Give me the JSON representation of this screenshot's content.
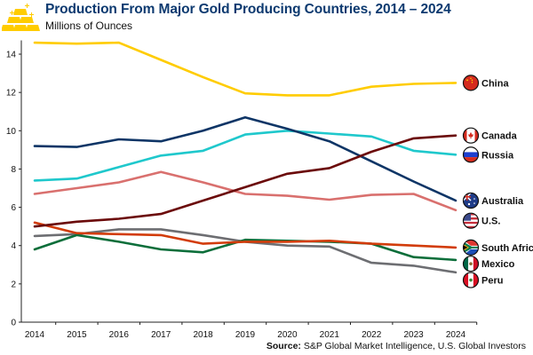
{
  "header": {
    "title": "Production From Major Gold Producing Countries, 2014 – 2024",
    "subtitle": "Millions of Ounces",
    "logo_icon": "gold-bars-icon"
  },
  "source": {
    "label": "Source:",
    "text": " S&P Global Market Intelligence, U.S. Global Investors"
  },
  "chart_data": {
    "type": "line",
    "title": "Production From Major Gold Producing Countries, 2014 – 2024",
    "subtitle": "Millions of Ounces",
    "xlabel": "",
    "ylabel": "Millions of Ounces",
    "x": [
      "2014",
      "2015",
      "2016",
      "2017",
      "2018",
      "2019",
      "2020",
      "2021",
      "2022",
      "2023",
      "2024"
    ],
    "ylim": [
      0,
      15
    ],
    "yticks": [
      0,
      2,
      4,
      6,
      8,
      10,
      12,
      14
    ],
    "grid": false,
    "legend_placement": "right (end-of-line labels with flag icons)",
    "series": [
      {
        "name": "China",
        "color": "#ffcc00",
        "flag": "china-flag-icon",
        "values": [
          14.6,
          14.55,
          14.6,
          13.7,
          12.8,
          11.95,
          11.85,
          11.85,
          12.3,
          12.45,
          12.5
        ]
      },
      {
        "name": "Canada",
        "color": "#6b0a0a",
        "flag": "canada-flag-icon",
        "values": [
          5.0,
          5.25,
          5.4,
          5.65,
          6.35,
          7.05,
          7.75,
          8.05,
          8.9,
          9.6,
          9.75
        ]
      },
      {
        "name": "Russia",
        "color": "#1fc8cc",
        "flag": "russia-flag-icon",
        "values": [
          7.4,
          7.5,
          8.1,
          8.7,
          8.95,
          9.8,
          10.0,
          9.85,
          9.7,
          8.95,
          8.75
        ]
      },
      {
        "name": "Australia",
        "color": "#0e3566",
        "flag": "australia-flag-icon",
        "values": [
          9.2,
          9.15,
          9.55,
          9.45,
          10.0,
          10.7,
          10.1,
          9.45,
          8.4,
          7.35,
          6.35
        ]
      },
      {
        "name": "U.S.",
        "color": "#d9706e",
        "flag": "us-flag-icon",
        "values": [
          6.7,
          7.0,
          7.3,
          7.85,
          7.3,
          6.7,
          6.6,
          6.4,
          6.65,
          6.7,
          5.85
        ]
      },
      {
        "name": "South Africa",
        "color": "#d23c0a",
        "flag": "south-africa-flag-icon",
        "values": [
          5.2,
          4.65,
          4.6,
          4.55,
          4.1,
          4.2,
          4.2,
          4.25,
          4.1,
          4.0,
          3.9
        ]
      },
      {
        "name": "Mexico",
        "color": "#0c6e3a",
        "flag": "mexico-flag-icon",
        "values": [
          3.8,
          4.55,
          4.2,
          3.8,
          3.65,
          4.3,
          4.25,
          4.2,
          4.1,
          3.4,
          3.25
        ]
      },
      {
        "name": "Peru",
        "color": "#6d6e72",
        "flag": "peru-flag-icon",
        "values": [
          4.5,
          4.6,
          4.85,
          4.85,
          4.55,
          4.2,
          4.0,
          3.95,
          3.1,
          2.95,
          2.6
        ]
      }
    ],
    "legend": [
      {
        "name": "China",
        "label_value": 12.5
      },
      {
        "name": "Canada",
        "label_value": 9.75
      },
      {
        "name": "Russia",
        "label_value": 8.75
      },
      {
        "name": "Australia",
        "label_value": 6.35
      },
      {
        "name": "U.S.",
        "label_value": 5.3
      },
      {
        "name": "South Africa",
        "label_value": 3.9
      },
      {
        "name": "Mexico",
        "label_value": 3.05
      },
      {
        "name": "Peru",
        "label_value": 2.2
      }
    ]
  }
}
